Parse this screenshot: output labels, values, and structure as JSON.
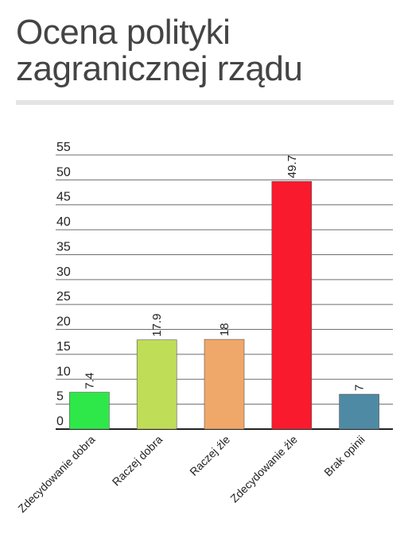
{
  "title": "Ocena polityki zagranicznej rządu",
  "chart_data": {
    "type": "bar",
    "title": "Ocena polityki zagranicznej rządu",
    "categories": [
      "Zdecydowanie dobra",
      "Raczej dobra",
      "Raczej źle",
      "Zdecydowanie źle",
      "Brak opinii"
    ],
    "values": [
      7.4,
      17.9,
      18,
      49.7,
      7
    ],
    "value_labels": [
      "7.4",
      "17.9",
      "18",
      "49.7",
      "7"
    ],
    "colors": [
      "#2ee84a",
      "#c0dd58",
      "#f0a86a",
      "#f91a2e",
      "#4f8aa4"
    ],
    "ylim": [
      0,
      55
    ],
    "yticks": [
      0,
      5,
      10,
      15,
      20,
      25,
      30,
      35,
      40,
      45,
      50,
      55
    ],
    "xlabel": "",
    "ylabel": "",
    "grid": true,
    "legend": "none"
  }
}
